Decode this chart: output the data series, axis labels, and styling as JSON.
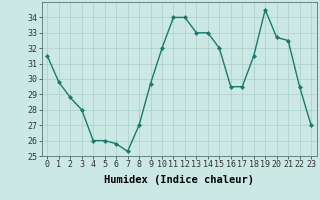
{
  "x": [
    0,
    1,
    2,
    3,
    4,
    5,
    6,
    7,
    8,
    9,
    10,
    11,
    12,
    13,
    14,
    15,
    16,
    17,
    18,
    19,
    20,
    21,
    22,
    23
  ],
  "y": [
    31.5,
    29.8,
    28.8,
    28.0,
    26.0,
    26.0,
    25.8,
    25.3,
    27.0,
    29.7,
    32.0,
    34.0,
    34.0,
    33.0,
    33.0,
    32.0,
    29.5,
    29.5,
    31.5,
    34.5,
    32.7,
    32.5,
    29.5,
    27.0
  ],
  "line_color": "#1a7a6e",
  "marker": "D",
  "marker_size": 2,
  "bg_color": "#cce8e4",
  "grid_color": "#aacfcb",
  "xlabel": "Humidex (Indice chaleur)",
  "ylim": [
    25,
    35
  ],
  "xlim": [
    -0.5,
    23.5
  ],
  "yticks": [
    25,
    26,
    27,
    28,
    29,
    30,
    31,
    32,
    33,
    34
  ],
  "xticks": [
    0,
    1,
    2,
    3,
    4,
    5,
    6,
    7,
    8,
    9,
    10,
    11,
    12,
    13,
    14,
    15,
    16,
    17,
    18,
    19,
    20,
    21,
    22,
    23
  ],
  "tick_fontsize": 6,
  "xlabel_fontsize": 7.5,
  "line_width": 1.0
}
